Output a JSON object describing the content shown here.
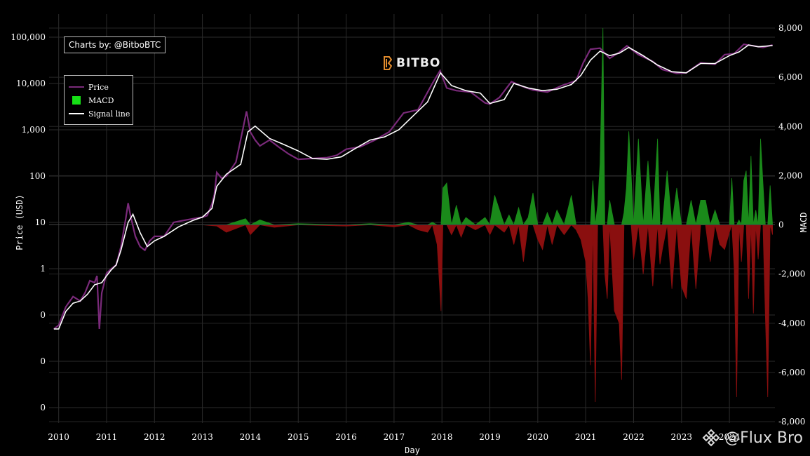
{
  "credit": "Charts by: @BitboBTC",
  "logo_text": "BITBO",
  "watermark_text": "@Flux Bro",
  "legend": [
    {
      "label": "Price",
      "color": "#7a2a7a",
      "kind": "line"
    },
    {
      "label": "MACD",
      "color": "#16e016",
      "kind": "box"
    },
    {
      "label": "Signal line",
      "color": "#ffffff",
      "kind": "line"
    }
  ],
  "chart_data": {
    "type": "line",
    "xlabel": "Day",
    "ylabel": "Price (USD)",
    "y2label": "MACD",
    "y_scale": "log",
    "x_ticks": [
      "2010",
      "2011",
      "2012",
      "2013",
      "2014",
      "2015",
      "2016",
      "2017",
      "2018",
      "2019",
      "2020",
      "2021",
      "2022",
      "2023",
      "2024"
    ],
    "y_tick_labels": [
      "100,000",
      "10,000",
      "1,000",
      "100",
      "10",
      "1",
      "0",
      "0",
      "0"
    ],
    "y2_ticks": [
      8000,
      6000,
      4000,
      2000,
      0,
      -2000,
      -4000,
      -6000,
      -8000
    ],
    "y2_tick_labels": [
      "8,000",
      "6,000",
      "4,000",
      "2,000",
      "0",
      "-2,000",
      "-4,000",
      "-6,000",
      "-8,000"
    ],
    "colors": {
      "price": "#7a2a7a",
      "signal": "#ffffff",
      "macd_pos": "#1a8a1a",
      "macd_neg": "#8a0f0f"
    },
    "series": [
      {
        "name": "Price",
        "x": [
          2009.9,
          2010.0,
          2010.15,
          2010.3,
          2010.45,
          2010.55,
          2010.65,
          2010.75,
          2010.8,
          2010.85,
          2010.9,
          2011.0,
          2011.1,
          2011.2,
          2011.3,
          2011.4,
          2011.45,
          2011.5,
          2011.6,
          2011.7,
          2011.8,
          2011.9,
          2012.0,
          2012.2,
          2012.4,
          2012.6,
          2012.8,
          2013.0,
          2013.1,
          2013.2,
          2013.25,
          2013.3,
          2013.4,
          2013.5,
          2013.7,
          2013.85,
          2013.92,
          2014.0,
          2014.1,
          2014.2,
          2014.4,
          2014.6,
          2014.8,
          2015.0,
          2015.3,
          2015.6,
          2015.8,
          2016.0,
          2016.3,
          2016.6,
          2016.9,
          2017.2,
          2017.5,
          2017.8,
          2017.96,
          2018.1,
          2018.3,
          2018.6,
          2018.9,
          2019.0,
          2019.2,
          2019.45,
          2019.7,
          2019.9,
          2020.2,
          2020.5,
          2020.8,
          2020.95,
          2021.1,
          2021.3,
          2021.5,
          2021.7,
          2021.86,
          2022.1,
          2022.4,
          2022.6,
          2022.9,
          2023.1,
          2023.4,
          2023.7,
          2023.9,
          2024.1,
          2024.3,
          2024.5,
          2024.7,
          2024.9
        ],
        "values": [
          0.05,
          0.06,
          0.15,
          0.25,
          0.2,
          0.3,
          0.55,
          0.5,
          0.7,
          0.05,
          0.3,
          0.8,
          1.0,
          1.2,
          3.0,
          12,
          26,
          14,
          5,
          3,
          2.5,
          4,
          5,
          5,
          10,
          11,
          12,
          13,
          14,
          25,
          40,
          120,
          90,
          100,
          200,
          1100,
          2500,
          900,
          600,
          450,
          600,
          420,
          300,
          230,
          240,
          250,
          280,
          380,
          430,
          600,
          900,
          2300,
          2700,
          10000,
          19000,
          8000,
          7000,
          6500,
          3800,
          3600,
          5000,
          11000,
          8500,
          7200,
          6500,
          9000,
          11500,
          28000,
          55000,
          58000,
          35000,
          47000,
          65000,
          42000,
          30000,
          20000,
          16500,
          17000,
          28000,
          26000,
          42000,
          44000,
          70000,
          65000,
          60000,
          68000
        ]
      },
      {
        "name": "Signal line",
        "x": [
          2009.9,
          2010.0,
          2010.15,
          2010.3,
          2010.45,
          2010.6,
          2010.75,
          2010.9,
          2011.0,
          2011.1,
          2011.2,
          2011.3,
          2011.45,
          2011.55,
          2011.7,
          2011.85,
          2012.0,
          2012.2,
          2012.5,
          2012.8,
          2013.0,
          2013.2,
          2013.3,
          2013.5,
          2013.8,
          2013.95,
          2014.1,
          2014.4,
          2014.7,
          2015.0,
          2015.3,
          2015.6,
          2015.9,
          2016.2,
          2016.5,
          2016.8,
          2017.1,
          2017.4,
          2017.7,
          2017.97,
          2018.2,
          2018.5,
          2018.8,
          2019.0,
          2019.3,
          2019.5,
          2019.8,
          2020.1,
          2020.4,
          2020.7,
          2020.9,
          2021.1,
          2021.3,
          2021.5,
          2021.7,
          2021.9,
          2022.2,
          2022.5,
          2022.8,
          2023.1,
          2023.4,
          2023.7,
          2024.0,
          2024.2,
          2024.4,
          2024.6,
          2024.9
        ],
        "values": [
          0.05,
          0.05,
          0.12,
          0.18,
          0.2,
          0.28,
          0.45,
          0.5,
          0.7,
          0.95,
          1.2,
          2.5,
          10,
          15,
          6,
          3,
          4,
          5,
          8,
          11,
          13,
          20,
          60,
          110,
          180,
          900,
          1200,
          650,
          480,
          350,
          240,
          230,
          260,
          400,
          600,
          700,
          1000,
          2000,
          4000,
          17000,
          9000,
          7000,
          6200,
          3700,
          4500,
          10000,
          8000,
          7000,
          7500,
          9500,
          15000,
          32000,
          50000,
          40000,
          45000,
          60000,
          40000,
          25000,
          18000,
          17000,
          27000,
          27000,
          40000,
          48000,
          68000,
          62000,
          66000
        ]
      }
    ],
    "macd_x": [
      2010.0,
      2012.9,
      2013.0,
      2013.3,
      2013.5,
      2013.9,
      2014.0,
      2014.2,
      2014.5,
      2015.0,
      2016.0,
      2016.5,
      2017.0,
      2017.3,
      2017.5,
      2017.7,
      2017.8,
      2017.9,
      2017.98,
      2018.02,
      2018.1,
      2018.2,
      2018.3,
      2018.4,
      2018.5,
      2018.7,
      2018.9,
      2019.0,
      2019.1,
      2019.3,
      2019.4,
      2019.5,
      2019.6,
      2019.7,
      2019.8,
      2019.9,
      2020.0,
      2020.1,
      2020.2,
      2020.3,
      2020.4,
      2020.55,
      2020.7,
      2020.8,
      2020.9,
      2021.0,
      2021.05,
      2021.1,
      2021.15,
      2021.2,
      2021.25,
      2021.3,
      2021.36,
      2021.4,
      2021.45,
      2021.5,
      2021.6,
      2021.7,
      2021.75,
      2021.8,
      2021.85,
      2021.9,
      2021.95,
      2022.0,
      2022.1,
      2022.2,
      2022.3,
      2022.4,
      2022.5,
      2022.55,
      2022.6,
      2022.7,
      2022.8,
      2022.9,
      2023.0,
      2023.1,
      2023.2,
      2023.3,
      2023.4,
      2023.5,
      2023.6,
      2023.7,
      2023.8,
      2023.9,
      2024.0,
      2024.05,
      2024.1,
      2024.15,
      2024.2,
      2024.25,
      2024.3,
      2024.35,
      2024.4,
      2024.45,
      2024.5,
      2024.55,
      2024.6,
      2024.65,
      2024.7,
      2024.75,
      2024.8,
      2024.85,
      2024.9
    ],
    "macd": [
      0,
      0,
      0,
      -50,
      -300,
      250,
      -400,
      200,
      -100,
      50,
      -50,
      50,
      -80,
      100,
      -200,
      -300,
      100,
      -800,
      -3500,
      1500,
      1700,
      -400,
      800,
      -500,
      300,
      -200,
      300,
      -400,
      1200,
      -300,
      400,
      -800,
      700,
      -1500,
      300,
      1300,
      -600,
      -1000,
      500,
      -800,
      600,
      -400,
      1200,
      -200,
      -600,
      -1500,
      -3000,
      -5700,
      1800,
      -7200,
      800,
      2500,
      8000,
      -2000,
      -3000,
      1000,
      -3500,
      -4000,
      -6300,
      500,
      1500,
      3800,
      2000,
      -1400,
      3500,
      -2000,
      2600,
      -2500,
      3500,
      -1600,
      -1000,
      2200,
      -2600,
      1500,
      -2500,
      -3000,
      1000,
      -2600,
      1000,
      1000,
      -1500,
      600,
      -800,
      -1000,
      -300,
      1900,
      -1800,
      -7000,
      200,
      -1500,
      1800,
      2200,
      -3000,
      2800,
      -3600,
      600,
      -1400,
      3500,
      1700,
      -3700,
      -7000,
      1600,
      -400
    ]
  }
}
